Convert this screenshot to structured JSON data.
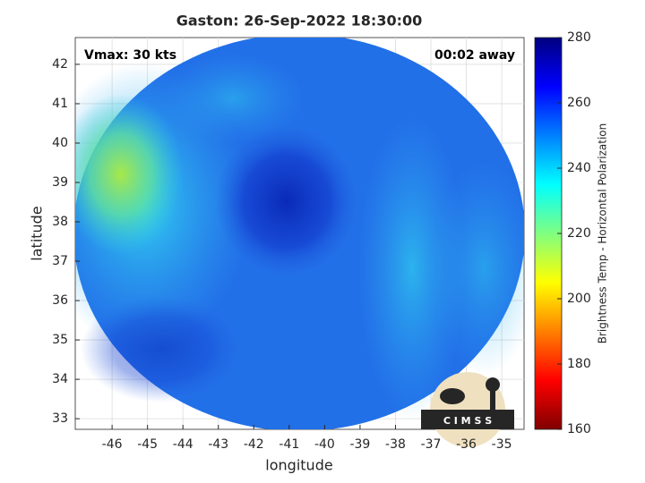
{
  "chart_data": {
    "type": "image",
    "title": "Gaston: 26-Sep-2022 18:30:00",
    "xlabel": "longitude",
    "ylabel": "latitude",
    "xlim": [
      -47.04,
      -34.37
    ],
    "ylim": [
      32.73,
      42.68
    ],
    "xticks": [
      -46,
      -45,
      -44,
      -43,
      -42,
      -41,
      -40,
      -39,
      -38,
      -37,
      -36,
      -35
    ],
    "yticks": [
      33,
      34,
      35,
      36,
      37,
      38,
      39,
      40,
      41,
      42
    ],
    "grid": true,
    "annotations": [
      "Vmax: 30 kts",
      "00:02 away"
    ],
    "colorbar": {
      "label": "Brightness Temp - Horizontal Polarization",
      "lim": [
        160,
        280
      ],
      "ticks": [
        160,
        180,
        200,
        220,
        240,
        260,
        280
      ],
      "colors": [
        "#800000",
        "#ff0000",
        "#ff8000",
        "#ffff00",
        "#80ff80",
        "#00ffff",
        "#0080ff",
        "#0000ff",
        "#000080"
      ]
    },
    "logo": "C I M S S"
  }
}
